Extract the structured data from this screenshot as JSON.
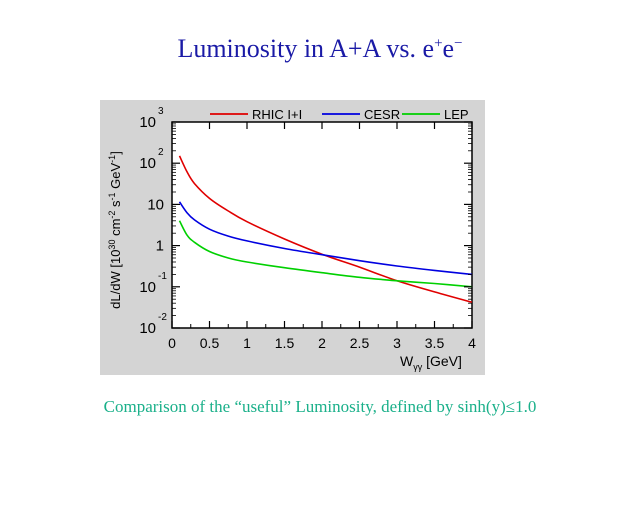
{
  "slide": {
    "title_main": "Luminosity in A+A vs. e",
    "title_sup1": "+",
    "title_e2": "e",
    "title_sup2": "−",
    "caption": "Comparison of the “useful” Luminosity, defined by sinh(y)≤1.0"
  },
  "chart_data": {
    "type": "line",
    "title": "",
    "xlabel_main": "W",
    "xlabel_sub": "γγ",
    "xlabel_unit": " [GeV]",
    "ylabel": "dL/dW [10^30 cm^-2 s^-1 GeV^-1]",
    "yscale": "log",
    "xlim": [
      0,
      4
    ],
    "ylim": [
      0.01,
      1000
    ],
    "x_ticks": [
      "0",
      "0.5",
      "1",
      "1.5",
      "2",
      "2.5",
      "3",
      "3.5",
      "4"
    ],
    "y_ticks": [
      {
        "base": "10",
        "exp": "3"
      },
      {
        "base": "10",
        "exp": "2"
      },
      {
        "base": "10",
        "exp": ""
      },
      {
        "base": "1",
        "exp": ""
      },
      {
        "base": "10",
        "exp": "-1"
      },
      {
        "base": "10",
        "exp": "-2"
      }
    ],
    "legend_position": "top",
    "series": [
      {
        "name": "RHIC I+I",
        "color": "#e00000",
        "x": [
          0.1,
          0.2,
          0.3,
          0.5,
          0.75,
          1.0,
          1.5,
          2.0,
          2.5,
          3.0,
          3.5,
          4.0
        ],
        "y": [
          150,
          62,
          32,
          14,
          6.9,
          3.8,
          1.45,
          0.62,
          0.3,
          0.14,
          0.075,
          0.042
        ]
      },
      {
        "name": "CESR",
        "color": "#0000e0",
        "x": [
          0.1,
          0.2,
          0.3,
          0.5,
          0.75,
          1.0,
          1.5,
          2.0,
          2.5,
          3.0,
          3.5,
          4.0
        ],
        "y": [
          11.5,
          6.3,
          4.2,
          2.5,
          1.7,
          1.3,
          0.85,
          0.6,
          0.43,
          0.32,
          0.25,
          0.2
        ]
      },
      {
        "name": "LEP",
        "color": "#00d000",
        "x": [
          0.1,
          0.2,
          0.3,
          0.5,
          0.75,
          1.0,
          1.5,
          2.0,
          2.5,
          3.0,
          3.5,
          4.0
        ],
        "y": [
          4.0,
          1.8,
          1.2,
          0.72,
          0.5,
          0.4,
          0.29,
          0.22,
          0.17,
          0.14,
          0.12,
          0.1
        ]
      }
    ]
  }
}
